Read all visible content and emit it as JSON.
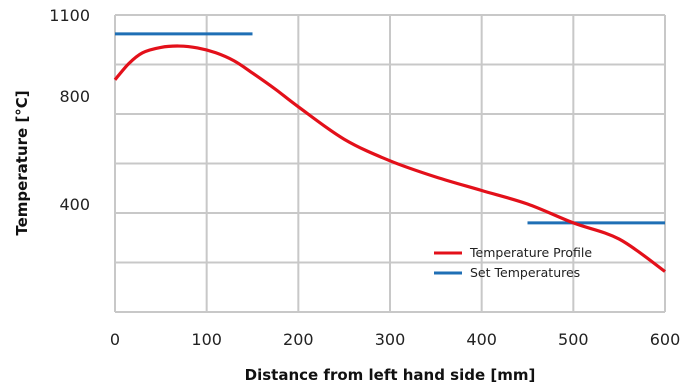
{
  "chart_data": {
    "type": "line",
    "xlabel": "Distance from left hand side [mm]",
    "ylabel": "Temperature [°C]",
    "xlim": [
      0,
      600
    ],
    "ylim": [
      0,
      1100
    ],
    "x_ticks": [
      0,
      100,
      200,
      300,
      400,
      500,
      600
    ],
    "y_tick_labels": [
      400,
      800,
      1100
    ],
    "grid": true,
    "legend_position": "lower-right",
    "series": [
      {
        "name": "Temperature Profile",
        "color": "#e3101a",
        "x": [
          0,
          15,
          30,
          50,
          70,
          90,
          110,
          130,
          150,
          175,
          200,
          250,
          300,
          350,
          400,
          450,
          500,
          550,
          600
        ],
        "y": [
          860,
          920,
          960,
          980,
          985,
          978,
          960,
          930,
          885,
          825,
          760,
          640,
          560,
          500,
          450,
          400,
          330,
          270,
          150
        ]
      },
      {
        "name": "Set Temperatures",
        "color": "#1f6fb5",
        "segments": [
          {
            "x": [
              0,
              150
            ],
            "y": [
              1030,
              1030
            ]
          },
          {
            "x": [
              450,
              600
            ],
            "y": [
              330,
              330
            ]
          }
        ]
      }
    ]
  }
}
